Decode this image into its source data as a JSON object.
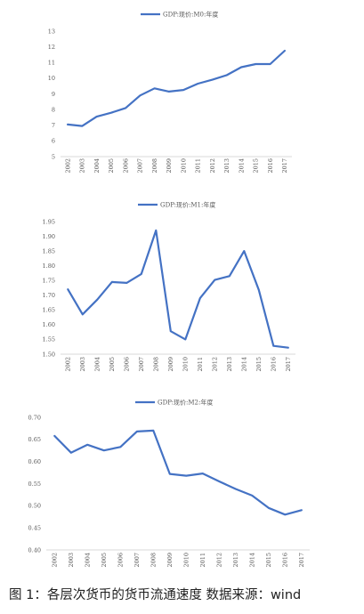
{
  "caption": "图 1：各层次货币的货币流通速度  数据来源：wind",
  "chart_data": [
    {
      "type": "line",
      "legend": "GDP:现价:M0:年度",
      "legend_position": "top",
      "categories": [
        "2002",
        "2003",
        "2004",
        "2005",
        "2006",
        "2007",
        "2008",
        "2009",
        "2010",
        "2011",
        "2012",
        "2013",
        "2014",
        "2015",
        "2016",
        "2017"
      ],
      "series": [
        {
          "name": "GDP:现价:M0:年度",
          "values": [
            7.05,
            6.95,
            7.55,
            7.8,
            8.1,
            8.9,
            9.35,
            9.15,
            9.25,
            9.65,
            9.9,
            10.2,
            10.7,
            10.9,
            10.9,
            11.75
          ]
        }
      ],
      "ylim": [
        5,
        13
      ],
      "yticks": [
        "5",
        "6",
        "7",
        "8",
        "9",
        "10",
        "11",
        "12",
        "13"
      ],
      "grid": false,
      "color": "#4472c4"
    },
    {
      "type": "line",
      "legend": "GDP:现价:M1:年度",
      "legend_position": "top",
      "categories": [
        "2002",
        "2003",
        "2004",
        "2005",
        "2006",
        "2007",
        "2008",
        "2009",
        "2010",
        "2011",
        "2012",
        "2013",
        "2014",
        "2015",
        "2016",
        "2017"
      ],
      "series": [
        {
          "name": "GDP:现价:M1:年度",
          "values": [
            1.72,
            1.635,
            1.685,
            1.745,
            1.742,
            1.772,
            1.92,
            1.578,
            1.55,
            1.69,
            1.752,
            1.765,
            1.85,
            1.718,
            1.528,
            1.522
          ]
        }
      ],
      "ylim": [
        1.5,
        1.95
      ],
      "yticks": [
        "1.50",
        "1.55",
        "1.60",
        "1.65",
        "1.70",
        "1.75",
        "1.80",
        "1.85",
        "1.90",
        "1.95"
      ],
      "grid": false,
      "color": "#4472c4"
    },
    {
      "type": "line",
      "legend": "GDP:现价:M2:年度",
      "legend_position": "top",
      "categories": [
        "2002",
        "2003",
        "2004",
        "2005",
        "2006",
        "2007",
        "2008",
        "2009",
        "2010",
        "2011",
        "2012",
        "2013",
        "2014",
        "2015",
        "2016",
        "2017"
      ],
      "series": [
        {
          "name": "GDP:现价:M2:年度",
          "values": [
            0.658,
            0.62,
            0.638,
            0.625,
            0.633,
            0.668,
            0.67,
            0.572,
            0.568,
            0.573,
            0.555,
            0.538,
            0.523,
            0.495,
            0.48,
            0.49
          ]
        }
      ],
      "ylim": [
        0.4,
        0.7
      ],
      "yticks": [
        "0.40",
        "0.45",
        "0.50",
        "0.55",
        "0.60",
        "0.65",
        "0.70"
      ],
      "grid": false,
      "color": "#4472c4"
    }
  ]
}
